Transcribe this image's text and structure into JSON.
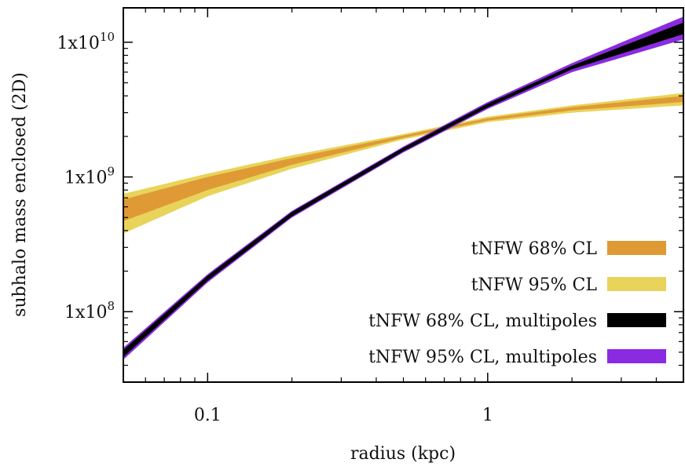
{
  "chart_data": {
    "type": "area",
    "xlabel": "radius (kpc)",
    "ylabel": "subhalo mass enclosed (2D)",
    "xscale": "log",
    "yscale": "log",
    "xlim": [
      0.05,
      5.0
    ],
    "ylim": [
      30000000.0,
      18000000000.0
    ],
    "x_ticks": [
      {
        "value": 0.1,
        "label": "0.1"
      },
      {
        "value": 1,
        "label": "1"
      }
    ],
    "y_ticks": [
      {
        "value": 100000000.0,
        "label": "1x10",
        "exp": "8"
      },
      {
        "value": 1000000000.0,
        "label": "1x10",
        "exp": "9"
      },
      {
        "value": 10000000000.0,
        "label": "1x10",
        "exp": "10"
      }
    ],
    "x": [
      0.05,
      0.1,
      0.2,
      0.5,
      1.0,
      2.0,
      5.0
    ],
    "legend_position": "lower-right",
    "series": [
      {
        "name": "tNFW 95% CL",
        "color": "#e8d45a",
        "lower": [
          380000000.0,
          720000000.0,
          1150000000.0,
          1900000000.0,
          2550000000.0,
          3000000000.0,
          3400000000.0
        ],
        "upper": [
          750000000.0,
          1060000000.0,
          1450000000.0,
          2080000000.0,
          2800000000.0,
          3400000000.0,
          4200000000.0
        ]
      },
      {
        "name": "tNFW 68% CL",
        "color": "#df9a36",
        "lower": [
          470000000.0,
          800000000.0,
          1230000000.0,
          1950000000.0,
          2620000000.0,
          3120000000.0,
          3600000000.0
        ],
        "upper": [
          680000000.0,
          1000000000.0,
          1380000000.0,
          2030000000.0,
          2730000000.0,
          3300000000.0,
          4000000000.0
        ]
      },
      {
        "name": "tNFW 95% CL, multipoles",
        "color": "#8a2be2",
        "lower": [
          44000000.0,
          165000000.0,
          500000000.0,
          1520000000.0,
          3200000000.0,
          6000000000.0,
          10500000000.0
        ],
        "upper": [
          54000000.0,
          190000000.0,
          560000000.0,
          1680000000.0,
          3600000000.0,
          7000000000.0,
          15500000000.0
        ]
      },
      {
        "name": "tNFW 68% CL, multipoles",
        "color": "#000000",
        "lower": [
          46000000.0,
          170000000.0,
          510000000.0,
          1550000000.0,
          3280000000.0,
          6300000000.0,
          11500000000.0
        ],
        "upper": [
          52000000.0,
          185000000.0,
          550000000.0,
          1650000000.0,
          3500000000.0,
          6700000000.0,
          14000000000.0
        ]
      }
    ],
    "legend": [
      {
        "label": "tNFW 68% CL",
        "color": "#df9a36"
      },
      {
        "label": "tNFW 95% CL",
        "color": "#e8d45a"
      },
      {
        "label": "tNFW 68% CL, multipoles",
        "color": "#000000"
      },
      {
        "label": "tNFW 95% CL, multipoles",
        "color": "#8a2be2"
      }
    ]
  }
}
